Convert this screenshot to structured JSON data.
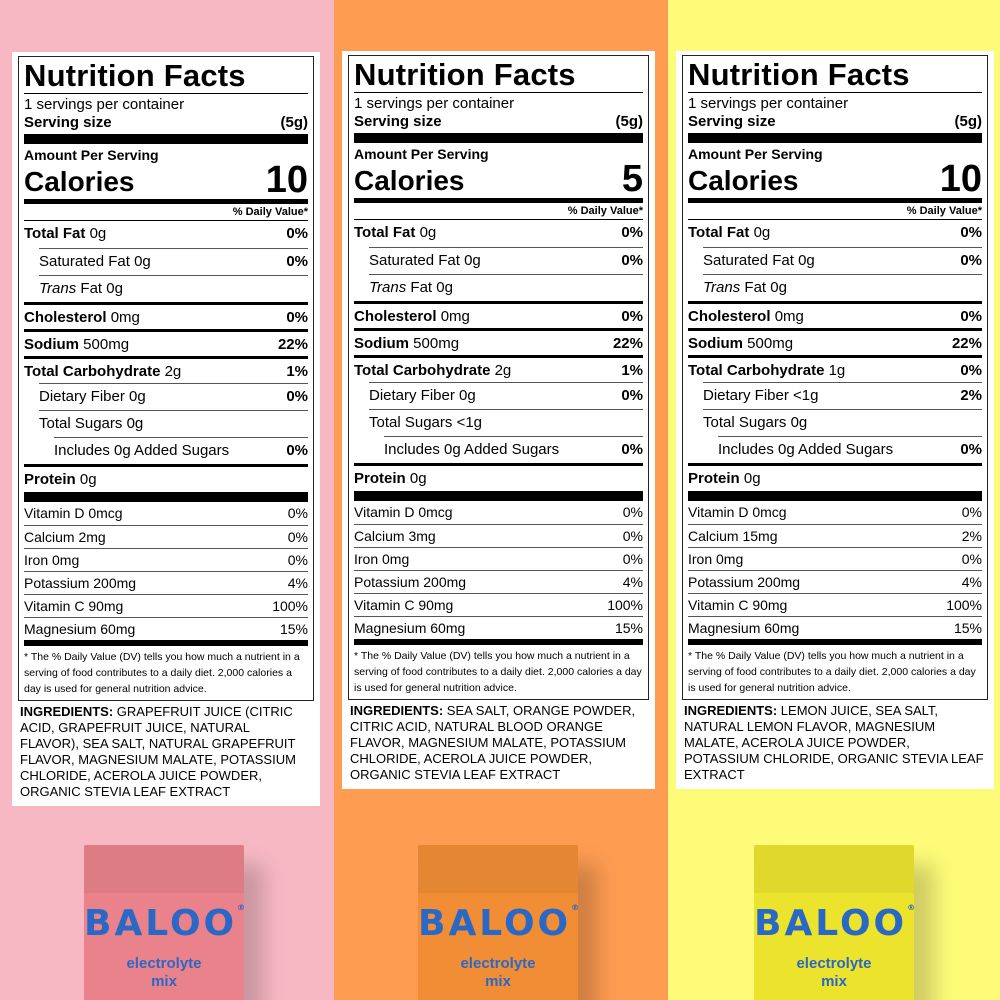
{
  "colors": {
    "pink_bg": "#f7b8c4",
    "orange_bg": "#fe9c52",
    "yellow_bg": "#fdfb78",
    "pink_pouch": "#ea828b",
    "orange_pouch": "#f18d35",
    "yellow_pouch": "#ece32c",
    "brand_blue": "#2a68c5"
  },
  "panels": [
    {
      "title": "Nutrition Facts",
      "servings": "1 servings per container",
      "serving_size_label": "Serving size",
      "serving_size_value": "(5g)",
      "amount_per_serving": "Amount Per Serving",
      "calories_label": "Calories",
      "calories_value": "10",
      "dv_header": "% Daily Value*",
      "nutrients": [
        {
          "name": "Total Fat",
          "amount": "0g",
          "dv": "0%"
        },
        {
          "name": "Saturated Fat",
          "amount": "0g",
          "dv": "0%"
        },
        {
          "name": "Trans",
          "name2": "Fat",
          "amount": "0g",
          "dv": ""
        },
        {
          "name": "Cholesterol",
          "amount": "0mg",
          "dv": "0%"
        },
        {
          "name": "Sodium",
          "amount": "500mg",
          "dv": "22%"
        },
        {
          "name": "Total Carbohydrate",
          "amount": "2g",
          "dv": "1%"
        },
        {
          "name": "Dietary Fiber",
          "amount": "0g",
          "dv": "0%"
        },
        {
          "name": "Total Sugars",
          "amount": "0g",
          "dv": ""
        },
        {
          "name": "Includes 0g Added Sugars",
          "amount": "",
          "dv": "0%"
        },
        {
          "name": "Protein",
          "amount": "0g",
          "dv": ""
        }
      ],
      "vitamins": [
        {
          "label": "Vitamin D 0mcg",
          "dv": "0%"
        },
        {
          "label": "Calcium 2mg",
          "dv": "0%"
        },
        {
          "label": "Iron 0mg",
          "dv": "0%"
        },
        {
          "label": "Potassium 200mg",
          "dv": "4%"
        },
        {
          "label": "Vitamin C 90mg",
          "dv": "100%"
        },
        {
          "label": "Magnesium 60mg",
          "dv": "15%"
        }
      ],
      "footnote": "* The % Daily Value (DV) tells you how much a nutrient in a serving of food contributes to a daily diet. 2,000 calories a day is used for general nutrition advice.",
      "ingredients_label": "INGREDIENTS:",
      "ingredients": "GRAPEFRUIT JUICE (CITRIC ACID, GRAPEFRUIT JUICE, NATURAL FLAVOR), SEA SALT, NATURAL GRAPEFRUIT FLAVOR, MAGNESIUM MALATE, POTASSIUM CHLORIDE, ACEROLA JUICE POWDER, ORGANIC STEVIA LEAF EXTRACT",
      "pouch": {
        "brand": "BALOO",
        "mark": "®",
        "line1": "electrolyte",
        "line2": "mix"
      }
    },
    {
      "title": "Nutrition Facts",
      "servings": "1 servings per container",
      "serving_size_label": "Serving size",
      "serving_size_value": "(5g)",
      "amount_per_serving": "Amount Per Serving",
      "calories_label": "Calories",
      "calories_value": "5",
      "dv_header": "% Daily Value*",
      "nutrients": [
        {
          "name": "Total Fat",
          "amount": "0g",
          "dv": "0%"
        },
        {
          "name": "Saturated Fat",
          "amount": "0g",
          "dv": "0%"
        },
        {
          "name": "Trans",
          "name2": "Fat",
          "amount": "0g",
          "dv": ""
        },
        {
          "name": "Cholesterol",
          "amount": "0mg",
          "dv": "0%"
        },
        {
          "name": "Sodium",
          "amount": "500mg",
          "dv": "22%"
        },
        {
          "name": "Total Carbohydrate",
          "amount": "2g",
          "dv": "1%"
        },
        {
          "name": "Dietary Fiber",
          "amount": "0g",
          "dv": "0%"
        },
        {
          "name": "Total Sugars",
          "amount": "<1g",
          "dv": ""
        },
        {
          "name": "Includes 0g Added Sugars",
          "amount": "",
          "dv": "0%"
        },
        {
          "name": "Protein",
          "amount": "0g",
          "dv": ""
        }
      ],
      "vitamins": [
        {
          "label": "Vitamin D 0mcg",
          "dv": "0%"
        },
        {
          "label": "Calcium 3mg",
          "dv": "0%"
        },
        {
          "label": "Iron 0mg",
          "dv": "0%"
        },
        {
          "label": "Potassium 200mg",
          "dv": "4%"
        },
        {
          "label": "Vitamin C 90mg",
          "dv": "100%"
        },
        {
          "label": "Magnesium 60mg",
          "dv": "15%"
        }
      ],
      "footnote": "* The % Daily Value (DV) tells you how much a nutrient in a serving of food contributes to a daily diet. 2,000 calories a day is used for general nutrition advice.",
      "ingredients_label": "INGREDIENTS:",
      "ingredients": "SEA SALT, ORANGE POWDER, CITRIC ACID, NATURAL BLOOD ORANGE FLAVOR, MAGNESIUM MALATE, POTASSIUM CHLORIDE, ACEROLA JUICE POWDER, ORGANIC STEVIA LEAF EXTRACT",
      "pouch": {
        "brand": "BALOO",
        "mark": "®",
        "line1": "electrolyte",
        "line2": "mix"
      }
    },
    {
      "title": "Nutrition Facts",
      "servings": "1 servings per container",
      "serving_size_label": "Serving size",
      "serving_size_value": "(5g)",
      "amount_per_serving": "Amount Per Serving",
      "calories_label": "Calories",
      "calories_value": "10",
      "dv_header": "% Daily Value*",
      "nutrients": [
        {
          "name": "Total Fat",
          "amount": "0g",
          "dv": "0%"
        },
        {
          "name": "Saturated Fat",
          "amount": "0g",
          "dv": "0%"
        },
        {
          "name": "Trans",
          "name2": "Fat",
          "amount": "0g",
          "dv": ""
        },
        {
          "name": "Cholesterol",
          "amount": "0mg",
          "dv": "0%"
        },
        {
          "name": "Sodium",
          "amount": "500mg",
          "dv": "22%"
        },
        {
          "name": "Total Carbohydrate",
          "amount": "1g",
          "dv": "0%"
        },
        {
          "name": "Dietary Fiber",
          "amount": "<1g",
          "dv": "2%"
        },
        {
          "name": "Total Sugars",
          "amount": "0g",
          "dv": ""
        },
        {
          "name": "Includes 0g Added Sugars",
          "amount": "",
          "dv": "0%"
        },
        {
          "name": "Protein",
          "amount": "0g",
          "dv": ""
        }
      ],
      "vitamins": [
        {
          "label": "Vitamin D 0mcg",
          "dv": "0%"
        },
        {
          "label": "Calcium 15mg",
          "dv": "2%"
        },
        {
          "label": "Iron 0mg",
          "dv": "0%"
        },
        {
          "label": "Potassium 200mg",
          "dv": "4%"
        },
        {
          "label": "Vitamin C 90mg",
          "dv": "100%"
        },
        {
          "label": "Magnesium 60mg",
          "dv": "15%"
        }
      ],
      "footnote": "* The % Daily Value (DV) tells you how much a nutrient in a serving of food contributes to a daily diet. 2,000 calories a day is used for general nutrition advice.",
      "ingredients_label": "INGREDIENTS:",
      "ingredients": "LEMON JUICE, SEA SALT, NATURAL LEMON FLAVOR, MAGNESIUM MALATE, ACEROLA JUICE POWDER, POTASSIUM CHLORIDE, ORGANIC STEVIA LEAF EXTRACT",
      "pouch": {
        "brand": "BALOO",
        "mark": "®",
        "line1": "electrolyte",
        "line2": "mix"
      }
    }
  ]
}
